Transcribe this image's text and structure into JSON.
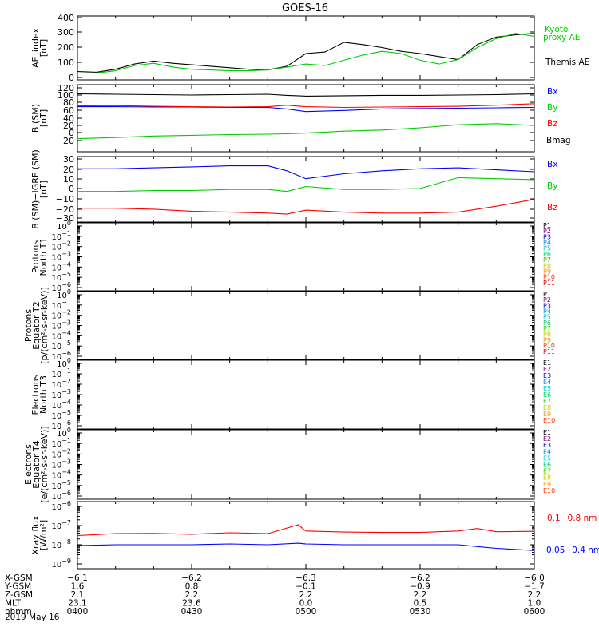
{
  "title": "GOES-16",
  "colors": {
    "black": "#000000",
    "blue": "#0000ff",
    "green": "#00cc00",
    "red": "#ff0000",
    "legend": [
      "#000000",
      "#800080",
      "#0000cc",
      "#0088ff",
      "#00cccc",
      "#00cc66",
      "#33cc00",
      "#cccc00",
      "#ff9900",
      "#ff3300",
      "#cc0000"
    ]
  },
  "panels": [
    {
      "id": "ae",
      "ylabel": [
        "AE_index",
        "[nT]"
      ],
      "yticks": [
        "400",
        "300",
        "200",
        "100",
        "0"
      ],
      "legend": [
        {
          "text": "Kyoto",
          "color": "green"
        },
        {
          "text": "proxy AE",
          "color": "green"
        },
        {
          "text": "Themis AE",
          "color": "black"
        }
      ]
    },
    {
      "id": "bsm",
      "ylabel": [
        "B (SM)",
        "[nT]"
      ],
      "yticks": [
        "120",
        "100",
        "80",
        "60",
        "40",
        "20",
        "0",
        "−20"
      ],
      "legend": [
        {
          "text": "Bx",
          "color": "blue"
        },
        {
          "text": "By",
          "color": "green"
        },
        {
          "text": "Bz",
          "color": "red"
        },
        {
          "text": "Bmag",
          "color": "black"
        }
      ]
    },
    {
      "id": "bigrf",
      "ylabel": [
        "B (SM)−IGRF (SM)",
        "[nT]"
      ],
      "yticks": [
        "30",
        "20",
        "10",
        "0",
        "−10",
        "−20",
        "−30"
      ],
      "legend": [
        {
          "text": "Bx",
          "color": "blue"
        },
        {
          "text": "By",
          "color": "green"
        },
        {
          "text": "Bz",
          "color": "red"
        }
      ]
    },
    {
      "id": "pn",
      "ylabel": [
        "Protons",
        "North T1"
      ],
      "ytickvals": [
        {
          "base": "10",
          "exp": "0"
        },
        {
          "base": "10",
          "exp": "−1"
        },
        {
          "base": "10",
          "exp": "−2"
        },
        {
          "base": "10",
          "exp": "−3"
        },
        {
          "base": "10",
          "exp": "−4"
        },
        {
          "base": "10",
          "exp": "−5"
        },
        {
          "base": "10",
          "exp": "−6"
        }
      ],
      "channels": [
        "P1",
        "P2",
        "P3",
        "P4",
        "P5",
        "P6",
        "P7",
        "P8",
        "P9",
        "P10",
        "P11"
      ]
    },
    {
      "id": "pe",
      "ylabel": [
        "Protons",
        "Equator T2",
        "[p/(cm²-s-sr-keV)]"
      ],
      "ytickvals": [
        {
          "base": "10",
          "exp": "0"
        },
        {
          "base": "10",
          "exp": "−1"
        },
        {
          "base": "10",
          "exp": "−2"
        },
        {
          "base": "10",
          "exp": "−3"
        },
        {
          "base": "10",
          "exp": "−4"
        },
        {
          "base": "10",
          "exp": "−5"
        },
        {
          "base": "10",
          "exp": "−6"
        }
      ],
      "channels": [
        "P1",
        "P2",
        "P3",
        "P4",
        "P5",
        "P6",
        "P7",
        "P8",
        "P9",
        "P10",
        "P11"
      ]
    },
    {
      "id": "en",
      "ylabel": [
        "Electrons",
        "North T3"
      ],
      "ytickvals": [
        {
          "base": "10",
          "exp": "0"
        },
        {
          "base": "10",
          "exp": "−1"
        },
        {
          "base": "10",
          "exp": "−2"
        },
        {
          "base": "10",
          "exp": "−3"
        },
        {
          "base": "10",
          "exp": "−4"
        },
        {
          "base": "10",
          "exp": "−5"
        },
        {
          "base": "10",
          "exp": "−6"
        }
      ],
      "channels": [
        "E1",
        "E2",
        "E3",
        "E4",
        "E5",
        "E6",
        "E7",
        "E8",
        "E9",
        "E10"
      ]
    },
    {
      "id": "ee",
      "ylabel": [
        "Electrons",
        "Equator T4",
        "[e/(cm²-s-sr-keV)]"
      ],
      "ytickvals": [
        {
          "base": "10",
          "exp": "0"
        },
        {
          "base": "10",
          "exp": "−1"
        },
        {
          "base": "10",
          "exp": "−2"
        },
        {
          "base": "10",
          "exp": "−3"
        },
        {
          "base": "10",
          "exp": "−4"
        },
        {
          "base": "10",
          "exp": "−5"
        },
        {
          "base": "10",
          "exp": "−6"
        }
      ],
      "channels": [
        "E1",
        "E2",
        "E3",
        "E4",
        "E5",
        "E6",
        "E7",
        "E8",
        "E9",
        "E10"
      ]
    },
    {
      "id": "xray",
      "ylabel": [
        "Xray flux",
        "[W/m²]"
      ],
      "ytickvals": [
        {
          "base": "10",
          "exp": "−6"
        },
        {
          "base": "10",
          "exp": "−7"
        },
        {
          "base": "10",
          "exp": "−8"
        },
        {
          "base": "10",
          "exp": "−9"
        }
      ],
      "legend": [
        {
          "text": "0.1−0.8 nm",
          "color": "red"
        },
        {
          "text": "0.05−0.4 nm",
          "color": "blue"
        }
      ]
    }
  ],
  "xaxis": {
    "rows": [
      {
        "label": "X-GSM",
        "values": [
          "−6.1",
          "−6.2",
          "−6.3",
          "−6.2",
          "−6.0"
        ]
      },
      {
        "label": "Y-GSM",
        "values": [
          "1.6",
          "0.8",
          "−0.1",
          "−0.9",
          "−1.7"
        ]
      },
      {
        "label": "Z-GSM",
        "values": [
          "2.1",
          "2.2",
          "2.2",
          "2.2",
          "2.2"
        ]
      },
      {
        "label": "MLT",
        "values": [
          "23.1",
          "23.6",
          "0.0",
          "0.5",
          "1.0"
        ]
      },
      {
        "label": "hhmm",
        "values": [
          "0400",
          "0430",
          "0500",
          "0530",
          "0600"
        ]
      }
    ],
    "date": "2019 May 16"
  },
  "chart_data": [
    {
      "type": "line",
      "panel": "ae",
      "ylim": [
        0,
        420
      ],
      "x": [
        "04:00",
        "04:05",
        "04:10",
        "04:15",
        "04:20",
        "04:25",
        "04:30",
        "04:35",
        "04:40",
        "04:45",
        "04:50",
        "04:55",
        "05:00",
        "05:05",
        "05:10",
        "05:15",
        "05:20",
        "05:25",
        "05:30",
        "05:35",
        "05:40",
        "05:45",
        "05:50",
        "05:55",
        "06:00"
      ],
      "series": [
        {
          "name": "Themis AE",
          "color": "black",
          "values": [
            40,
            35,
            55,
            90,
            110,
            95,
            85,
            75,
            65,
            55,
            50,
            75,
            160,
            170,
            235,
            220,
            200,
            175,
            160,
            140,
            120,
            220,
            270,
            285,
            295
          ]
        },
        {
          "name": "Kyoto proxy AE",
          "color": "green",
          "values": [
            30,
            30,
            45,
            80,
            95,
            70,
            55,
            50,
            45,
            45,
            50,
            70,
            90,
            80,
            115,
            150,
            175,
            160,
            115,
            90,
            120,
            200,
            260,
            295,
            275
          ]
        }
      ]
    },
    {
      "type": "line",
      "panel": "bsm",
      "ylim": [
        -20,
        120
      ],
      "x": [
        "04:00",
        "04:10",
        "04:20",
        "04:30",
        "04:40",
        "04:50",
        "04:55",
        "05:00",
        "05:10",
        "05:20",
        "05:30",
        "05:40",
        "05:50",
        "06:00"
      ],
      "series": [
        {
          "name": "Bmag",
          "color": "black",
          "values": [
            104,
            103,
            102,
            101,
            102,
            103,
            100,
            98,
            99,
            100,
            100,
            101,
            102,
            104
          ]
        },
        {
          "name": "Bx",
          "color": "blue",
          "values": [
            70,
            70,
            69,
            69,
            68,
            68,
            64,
            57,
            60,
            64,
            65,
            66,
            67,
            68
          ]
        },
        {
          "name": "Bz",
          "color": "red",
          "values": [
            72,
            73,
            71,
            70,
            69,
            70,
            74,
            70,
            68,
            69,
            70,
            71,
            74,
            78
          ]
        },
        {
          "name": "By",
          "color": "green",
          "values": [
            -15,
            -12,
            -8,
            -6,
            -4,
            -3,
            -2,
            0,
            5,
            8,
            14,
            22,
            25,
            20
          ]
        }
      ]
    },
    {
      "type": "line",
      "panel": "bigrf",
      "ylim": [
        -35,
        33
      ],
      "x": [
        "04:00",
        "04:10",
        "04:20",
        "04:30",
        "04:40",
        "04:50",
        "04:55",
        "05:00",
        "05:10",
        "05:20",
        "05:30",
        "05:40",
        "05:50",
        "06:00"
      ],
      "series": [
        {
          "name": "Bx",
          "color": "blue",
          "values": [
            20,
            20,
            21,
            22,
            23,
            23,
            18,
            10,
            15,
            18,
            20,
            21,
            19,
            17
          ]
        },
        {
          "name": "By",
          "color": "green",
          "values": [
            -3,
            -3,
            -2,
            -2,
            -1,
            -1,
            -3,
            2,
            -1,
            -1,
            0,
            11,
            10,
            9
          ]
        },
        {
          "name": "Bz",
          "color": "red",
          "values": [
            -20,
            -20,
            -21,
            -23,
            -24,
            -25,
            -26,
            -22,
            -24,
            -25,
            -25,
            -24,
            -18,
            -11
          ]
        }
      ]
    },
    {
      "type": "line",
      "panel": "xray",
      "ylog": true,
      "ylim": [
        1e-09,
        1e-06
      ],
      "x": [
        "04:00",
        "04:10",
        "04:20",
        "04:30",
        "04:40",
        "04:50",
        "04:58",
        "05:00",
        "05:10",
        "05:20",
        "05:30",
        "05:40",
        "05:45",
        "05:50",
        "06:00"
      ],
      "series": [
        {
          "name": "0.1−0.8 nm",
          "color": "red",
          "values": [
            3e-08,
            3.8e-08,
            3.9e-08,
            3.5e-08,
            4.2e-08,
            3.8e-08,
            1.1e-07,
            5.2e-08,
            4.6e-08,
            4.4e-08,
            4.4e-08,
            5.2e-08,
            7e-08,
            4.8e-08,
            5e-08
          ]
        },
        {
          "name": "0.05−0.4 nm",
          "color": "blue",
          "values": [
            9e-09,
            1e-08,
            1e-08,
            1e-08,
            1.1e-08,
            1e-08,
            1.2e-08,
            1.1e-08,
            1e-08,
            1e-08,
            1e-08,
            1e-08,
            8e-09,
            6.5e-09,
            5e-09
          ]
        }
      ]
    }
  ]
}
